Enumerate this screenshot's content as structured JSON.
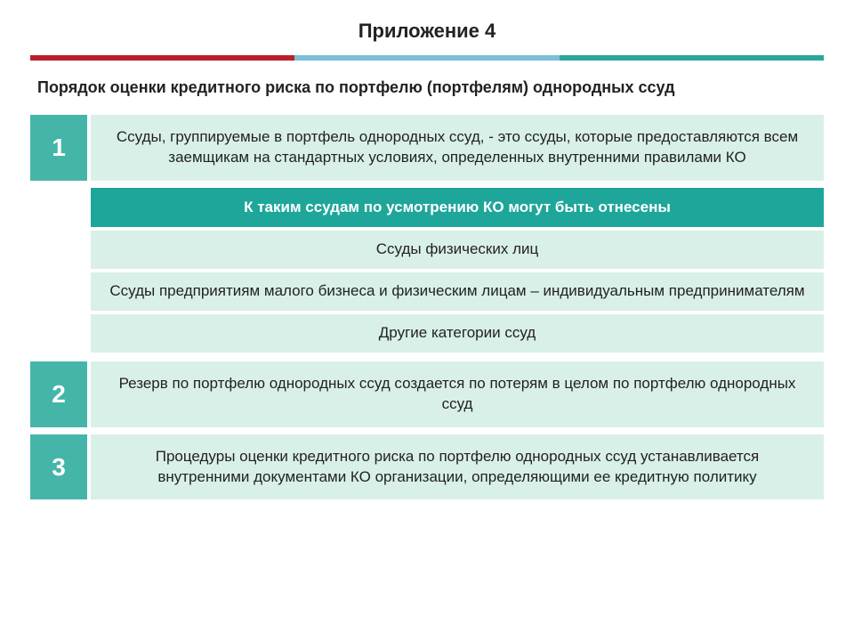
{
  "title": "Приложение 4",
  "subtitle": "Порядок оценки кредитного риска по портфелю (портфелям) однородных ссуд",
  "accentBar": {
    "colors": [
      "#b9202a",
      "#7bbfd6",
      "#29a79b"
    ]
  },
  "colors": {
    "badge_bg": "#45b5aa",
    "row_body_bg": "#d9f0e8",
    "inset_header_bg": "#1ea69a",
    "inset_item_bg": "#d9f0e8",
    "white": "#ffffff"
  },
  "rows": [
    {
      "num": "1",
      "text": "Ссуды, группируемые в портфель однородных ссуд, - это ссуды, которые предоставляются всем заемщикам на стандартных условиях, определенных внутренними правилами КО"
    },
    {
      "num": "2",
      "text": "Резерв по портфелю однородных ссуд создается по потерям в целом по портфелю однородных ссуд"
    },
    {
      "num": "3",
      "text": "Процедуры оценки кредитного риска по портфелю однородных ссуд устанавливается внутренними документами КО организации, определяющими ее кредитную политику"
    }
  ],
  "inset": {
    "header": "К таким ссудам по усмотрению КО могут быть отнесены",
    "items": [
      "Ссуды физических лиц",
      "Ссуды предприятиям малого бизнеса и физическим лицам – индивидуальным предпринимателям",
      "Другие категории ссуд"
    ]
  }
}
